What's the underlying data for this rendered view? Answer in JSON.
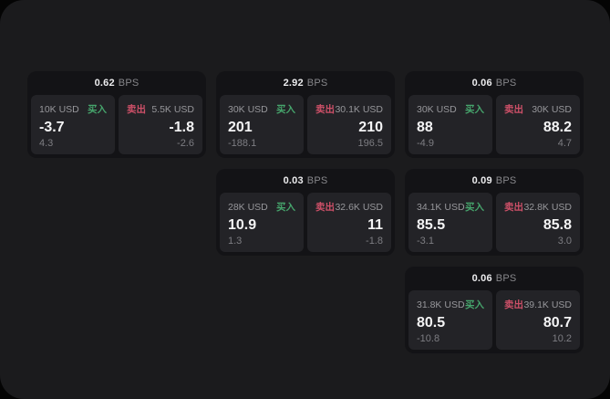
{
  "labels": {
    "bps_unit": "BPS",
    "buy": "买入",
    "sell": "卖出"
  },
  "colors": {
    "buy_green": "#46a46c",
    "sell_red": "#cd5068",
    "page_bg": "#1b1b1d",
    "outer_bg": "#040404",
    "card_bg": "#131316",
    "panel_bg": "#232327"
  },
  "cards": [
    {
      "bps": "0.62",
      "buy": {
        "size": "10K USD",
        "value": "-3.7",
        "sub": "4.3"
      },
      "sell": {
        "size": "5.5K USD",
        "value": "-1.8",
        "sub": "-2.6"
      }
    },
    {
      "bps": "2.92",
      "buy": {
        "size": "30K USD",
        "value": "201",
        "sub": "-188.1"
      },
      "sell": {
        "size": "30.1K USD",
        "value": "210",
        "sub": "196.5"
      }
    },
    {
      "bps": "0.06",
      "buy": {
        "size": "30K USD",
        "value": "88",
        "sub": "-4.9"
      },
      "sell": {
        "size": "30K USD",
        "value": "88.2",
        "sub": "4.7"
      }
    },
    {
      "bps": "0.03",
      "buy": {
        "size": "28K USD",
        "value": "10.9",
        "sub": "1.3"
      },
      "sell": {
        "size": "32.6K USD",
        "value": "11",
        "sub": "-1.8"
      }
    },
    {
      "bps": "0.09",
      "buy": {
        "size": "34.1K USD",
        "value": "85.5",
        "sub": "-3.1"
      },
      "sell": {
        "size": "32.8K USD",
        "value": "85.8",
        "sub": "3.0"
      }
    },
    {
      "bps": "0.06",
      "buy": {
        "size": "31.8K USD",
        "value": "80.5",
        "sub": "-10.8"
      },
      "sell": {
        "size": "39.1K USD",
        "value": "80.7",
        "sub": "10.2"
      }
    }
  ]
}
